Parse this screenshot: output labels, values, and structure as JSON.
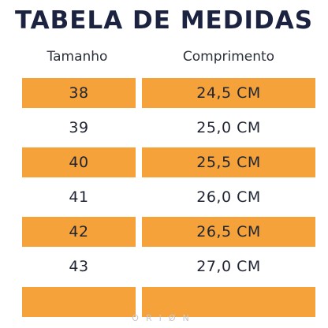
{
  "title": "TABELA DE MEDIDAS",
  "headers": {
    "size": "Tamanho",
    "length": "Comprimento"
  },
  "rows": [
    {
      "size": "38",
      "length": "24,5 CM",
      "shaded": true
    },
    {
      "size": "39",
      "length": "25,0 CM",
      "shaded": false
    },
    {
      "size": "40",
      "length": "25,5 CM",
      "shaded": true
    },
    {
      "size": "41",
      "length": "26,0 CM",
      "shaded": false
    },
    {
      "size": "42",
      "length": "26,5 CM",
      "shaded": true
    },
    {
      "size": "43",
      "length": "27,0 CM",
      "shaded": false
    },
    {
      "size": "",
      "length": "",
      "shaded": true
    }
  ],
  "watermark": "ORIØN",
  "colors": {
    "title": "#1b2340",
    "accent": "#f6a23a",
    "watermark": "#c8c8c8"
  }
}
